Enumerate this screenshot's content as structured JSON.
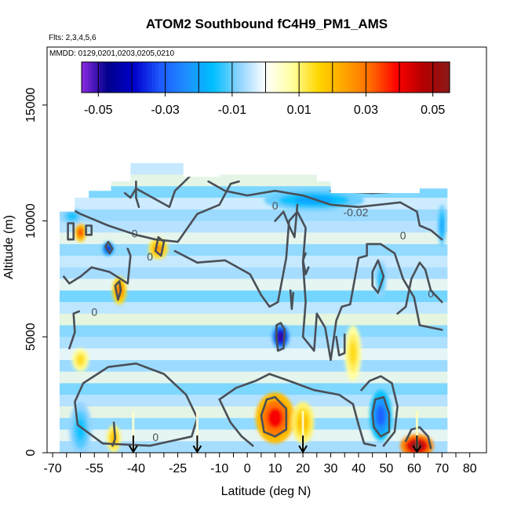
{
  "chart_data": {
    "type": "heatmap",
    "title": "ATOM2 Southbound fC4H9_PM1_AMS",
    "flights_note": "Flts: 2,3,4,5,6",
    "dates_note": "MMDD: 0129,0201,0203,0205,0210",
    "xlabel": "Latitude (deg N)",
    "ylabel": "Altitude (m)",
    "xlim": [
      -72,
      86
    ],
    "ylim": [
      0,
      17500
    ],
    "x_ticks": [
      -70,
      -55,
      -40,
      -25,
      -10,
      0,
      10,
      20,
      30,
      40,
      50,
      60,
      70,
      80
    ],
    "x_tick_labels": [
      "-70",
      "-55",
      "-40",
      "-25",
      "-10",
      "0",
      "10",
      "20",
      "30",
      "40",
      "50",
      "60",
      "70",
      "80"
    ],
    "x_minor_ticks": [
      -65,
      -60,
      -50,
      -45,
      -35,
      -30,
      -20,
      -15,
      -5,
      5,
      15,
      25,
      35,
      45,
      55,
      65,
      75
    ],
    "y_ticks": [
      0,
      5000,
      10000,
      15000
    ],
    "y_tick_labels": [
      "0",
      "5000",
      "10000",
      "15000"
    ],
    "colorbar": {
      "range": [
        -0.055,
        0.055
      ],
      "tick_values": [
        -0.05,
        -0.03,
        -0.01,
        0.01,
        0.03,
        0.05
      ],
      "tick_labels": [
        "-0.05",
        "-0.03",
        "-0.01",
        "0.01",
        "0.03",
        "0.05"
      ],
      "divisions": [
        -0.05,
        -0.04,
        -0.03,
        -0.02,
        -0.01,
        0.0,
        0.01,
        0.02,
        0.03,
        0.04,
        0.05
      ],
      "colors": [
        "#8a2be2",
        "#00008b",
        "#0000cd",
        "#1e5aff",
        "#1e90ff",
        "#00bfff",
        "#8fd3ff",
        "#ffffff",
        "#ffffa0",
        "#ffd700",
        "#ffa500",
        "#ff6a00",
        "#ff0000",
        "#b30000",
        "#8b1a1a"
      ]
    },
    "contour_levels": [
      -0.02,
      0,
      0.02
    ],
    "contour_labels": [
      {
        "text": "-0.02",
        "lat": 39,
        "alt": 10200
      },
      {
        "text": "0",
        "lat": -40.5,
        "alt": 9300
      },
      {
        "text": "0",
        "lat": -35,
        "alt": 8300
      },
      {
        "text": "0",
        "lat": -55,
        "alt": 5900
      },
      {
        "text": "0",
        "lat": -33,
        "alt": 500
      },
      {
        "text": "0",
        "lat": 66,
        "alt": 6700
      },
      {
        "text": "0",
        "lat": 56,
        "alt": 9200
      },
      {
        "text": "0",
        "lat": 10,
        "alt": 10500
      }
    ],
    "arrows_lat": [
      -41,
      -18,
      20,
      61
    ],
    "vertical_profiles": [
      {
        "lat": -41,
        "top": 0.004
      },
      {
        "lat": -18,
        "top": 0.003
      },
      {
        "lat": 20,
        "top": 0.004
      },
      {
        "lat": 61,
        "top": 0.006
      }
    ],
    "hotspots": [
      {
        "lat": 10,
        "alt": 1500,
        "value": 0.04,
        "rx": 7,
        "ry": 1100
      },
      {
        "lat": 20,
        "alt": 1300,
        "value": 0.02,
        "rx": 4,
        "ry": 900
      },
      {
        "lat": 61,
        "alt": 300,
        "value": 0.055,
        "rx": 6,
        "ry": 500
      },
      {
        "lat": 48,
        "alt": 1600,
        "value": -0.03,
        "rx": 4,
        "ry": 1100
      },
      {
        "lat": 12,
        "alt": 5000,
        "value": -0.05,
        "rx": 3,
        "ry": 500
      },
      {
        "lat": -46,
        "alt": 7000,
        "value": 0.03,
        "rx": 2.5,
        "ry": 600
      },
      {
        "lat": -60,
        "alt": 9500,
        "value": 0.035,
        "rx": 2,
        "ry": 400
      },
      {
        "lat": -32,
        "alt": 8800,
        "value": 0.025,
        "rx": 3.5,
        "ry": 450
      },
      {
        "lat": -50,
        "alt": 8800,
        "value": -0.04,
        "rx": 2,
        "ry": 300
      },
      {
        "lat": 24,
        "alt": 10900,
        "value": -0.02,
        "rx": 18,
        "ry": 450
      },
      {
        "lat": -63,
        "alt": 10200,
        "value": -0.015,
        "rx": 4,
        "ry": 350
      },
      {
        "lat": 70,
        "alt": 9800,
        "value": -0.02,
        "rx": 1.5,
        "ry": 900
      },
      {
        "lat": 48,
        "alt": 7500,
        "value": -0.015,
        "rx": 2,
        "ry": 800
      },
      {
        "lat": -60,
        "alt": 1000,
        "value": -0.015,
        "rx": 4,
        "ry": 1200
      },
      {
        "lat": -48,
        "alt": 600,
        "value": 0.02,
        "rx": 2.5,
        "ry": 600
      },
      {
        "lat": 38,
        "alt": 4300,
        "value": 0.015,
        "rx": 3,
        "ry": 1200
      },
      {
        "lat": -60,
        "alt": 4000,
        "value": 0.015,
        "rx": 3,
        "ry": 500
      }
    ],
    "flight_data_bounds": {
      "lat_min": -67.5,
      "lat_max": 72,
      "alt_min": 0,
      "alt_max": 12500
    }
  }
}
